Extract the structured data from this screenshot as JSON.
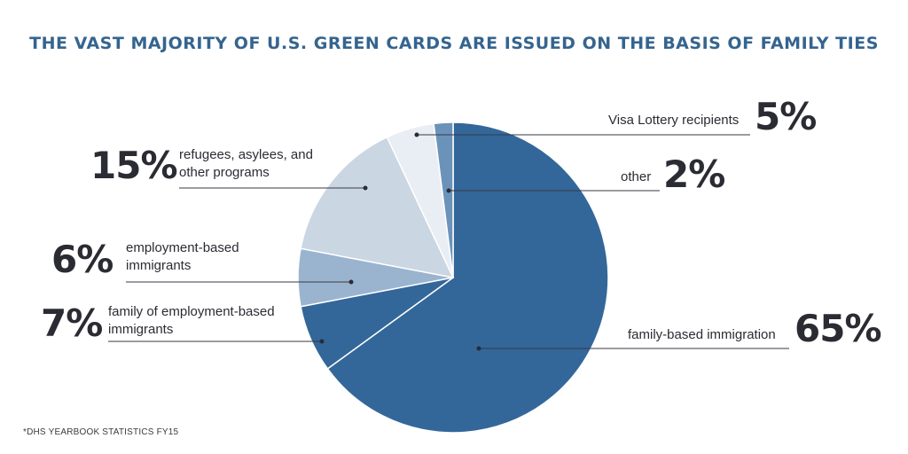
{
  "title": "THE VAST MAJORITY OF U.S. GREEN CARDS ARE ISSUED ON THE BASIS OF FAMILY TIES",
  "footnote": "*DHS YEARBOOK STATISTICS FY15",
  "chart_data": {
    "type": "pie",
    "title": "THE VAST MAJORITY OF U.S. GREEN CARDS ARE ISSUED ON THE BASIS OF FAMILY TIES",
    "start": "12 o'clock",
    "direction": "clockwise",
    "slices": [
      {
        "label": "family-based immigration",
        "value": 65,
        "display": "65%",
        "color": "#33679a"
      },
      {
        "label": "family of employment-based immigrants",
        "value": 7,
        "display": "7%",
        "color": "#33679a"
      },
      {
        "label": "employment-based immigrants",
        "value": 6,
        "display": "6%",
        "color": "#9ab4cf"
      },
      {
        "label": "refugees, asylees, and other programs",
        "value": 15,
        "display": "15%",
        "color": "#cbd6e3"
      },
      {
        "label": "Visa Lottery recipients",
        "value": 5,
        "display": "5%",
        "color": "#e9edf4"
      },
      {
        "label": "other",
        "value": 2,
        "display": "2%",
        "color": "#6b93ba"
      }
    ]
  }
}
